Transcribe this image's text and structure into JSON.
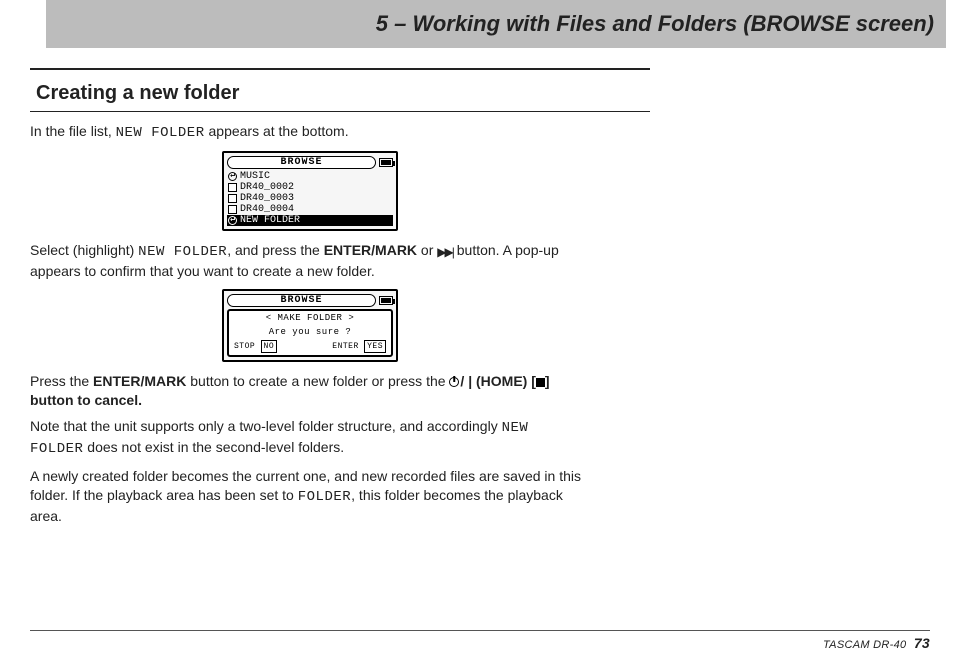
{
  "header": {
    "title": "5 – Working with Files and Folders (BROWSE screen)"
  },
  "section": {
    "heading": "Creating a new folder"
  },
  "body": {
    "p1a": "In the file list, ",
    "p1b": "NEW FOLDER",
    "p1c": " appears at the bottom.",
    "p2a": "Select (highlight) ",
    "p2b": "NEW FOLDER",
    "p2c": ", and press the ",
    "p2d": "ENTER/MARK",
    "p2e": " or ",
    "p2f": " button. A pop-up appears to confirm that you want to create a new folder.",
    "p3a": "Press the ",
    "p3b": "ENTER/MARK",
    "p3c": " button to create a new folder or press the ",
    "p3d": "(HOME) [",
    "p3e": "] button to cancel.",
    "p4a": "Note that the unit supports only a two-level folder structure, and accordingly ",
    "p4b": "NEW FOLDER",
    "p4c": " does not exist in the second-level folders.",
    "p5a": "A newly created folder becomes the current one, and new recorded files are saved in this folder. If the playback area has been set to ",
    "p5b": "FOLDER",
    "p5c": ", this folder becomes the playback area."
  },
  "lcd1": {
    "title": "BROWSE",
    "rows": [
      {
        "icon": "ret",
        "label": "MUSIC",
        "selected": false
      },
      {
        "icon": "folder",
        "label": "DR40_0002",
        "selected": false
      },
      {
        "icon": "folder",
        "label": "DR40_0003",
        "selected": false
      },
      {
        "icon": "folder",
        "label": "DR40_0004",
        "selected": false
      },
      {
        "icon": "ret",
        "label": "NEW FOLDER",
        "selected": true
      }
    ]
  },
  "lcd2": {
    "title": "BROWSE",
    "popup_line1": "< MAKE FOLDER >",
    "popup_line2": "Are you sure ?",
    "btn_left_a": "STOP",
    "btn_left_b": "NO",
    "btn_right_a": "ENTER",
    "btn_right_b": "YES"
  },
  "footer": {
    "model": "TASCAM DR-40",
    "page": "73"
  },
  "colors": {
    "header_bg": "#bcbcbc",
    "text": "#222222",
    "rule": "#222222"
  }
}
